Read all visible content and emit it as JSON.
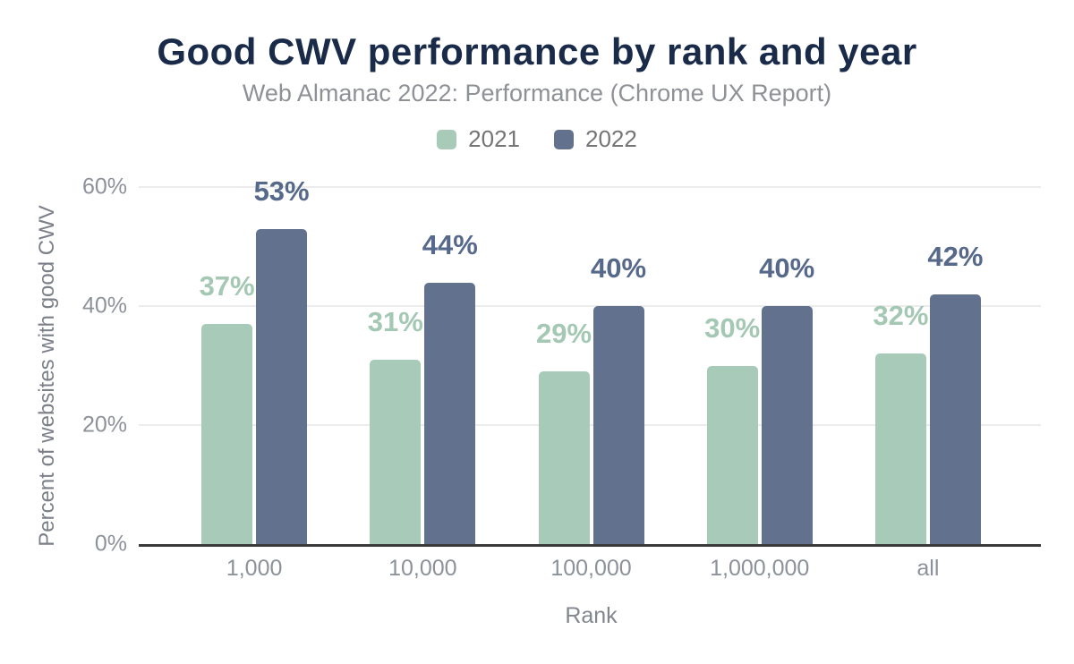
{
  "chart_data": {
    "type": "bar",
    "title": "Good CWV performance by rank and year",
    "subtitle": "Web Almanac 2022: Performance (Chrome UX Report)",
    "xlabel": "Rank",
    "ylabel": "Percent of websites with good CWV",
    "categories": [
      "1,000",
      "10,000",
      "100,000",
      "1,000,000",
      "all"
    ],
    "series": [
      {
        "name": "2021",
        "values": [
          37,
          31,
          29,
          30,
          32
        ],
        "color": "#a8cab8",
        "label_color": "#a4c8b4"
      },
      {
        "name": "2022",
        "values": [
          53,
          44,
          40,
          40,
          42
        ],
        "color": "#61718e",
        "label_color": "#56698b"
      }
    ],
    "unit": "%",
    "y_ticks": [
      0,
      20,
      40,
      60
    ],
    "ylim": [
      0,
      62.6
    ],
    "grid": true,
    "legend_position": "top",
    "colors": {
      "title": "#1a2b49",
      "subtitle": "#8e9196",
      "axis_text": "#8d919a",
      "gridline": "#ececec",
      "axis_line": "#3b3b3b",
      "background": "#ffffff"
    }
  }
}
